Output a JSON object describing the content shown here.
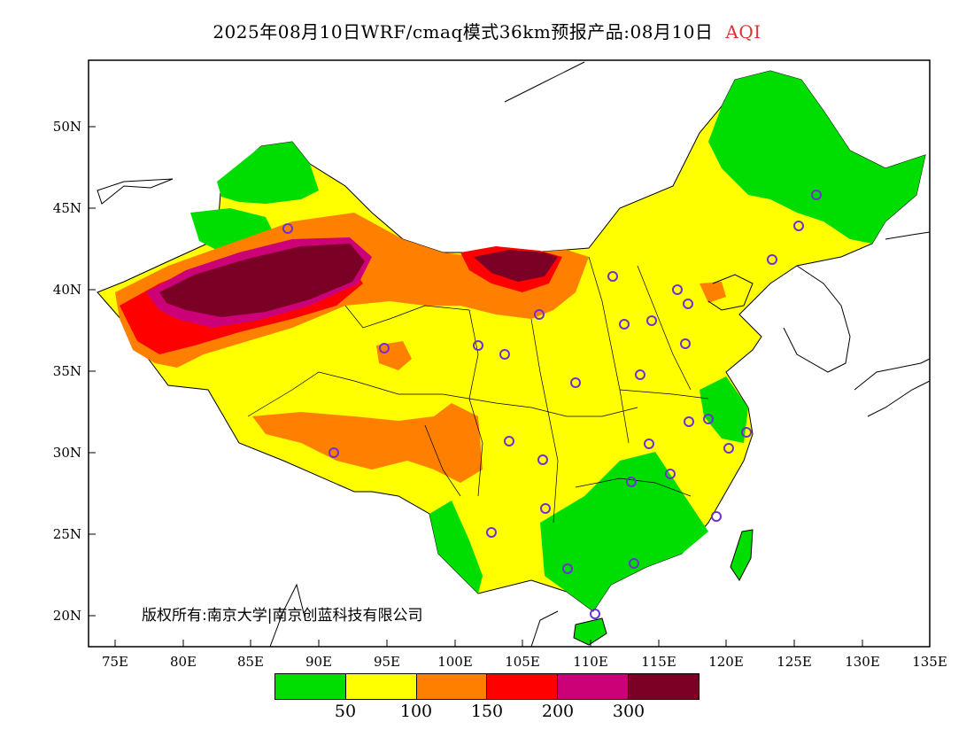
{
  "header": {
    "title": "2025年08月10日WRF/cmaq模式36km预报产品:08月10日",
    "variable": "AQI"
  },
  "copyright": "版权所有:南京大学|南京创蓝科技有限公司",
  "axes": {
    "lon_ticks": [
      "75E",
      "80E",
      "85E",
      "90E",
      "95E",
      "100E",
      "105E",
      "110E",
      "115E",
      "120E",
      "125E",
      "130E",
      "135E"
    ],
    "lat_ticks": [
      "50N",
      "45N",
      "40N",
      "35N",
      "30N",
      "25N",
      "20N"
    ]
  },
  "legend": {
    "colors": [
      "#00dd00",
      "#ffff00",
      "#ff8000",
      "#ff0000",
      "#cc0077",
      "#7a0025"
    ],
    "thresholds": [
      "50",
      "100",
      "150",
      "200",
      "300"
    ]
  },
  "colors": {
    "good": "#00dd00",
    "moderate": "#ffff00",
    "unhealthy_sensitive": "#ff8000",
    "unhealthy": "#ff0000",
    "very_unhealthy": "#cc0077",
    "hazardous": "#7a0025",
    "station_marker": "#7030d0"
  }
}
